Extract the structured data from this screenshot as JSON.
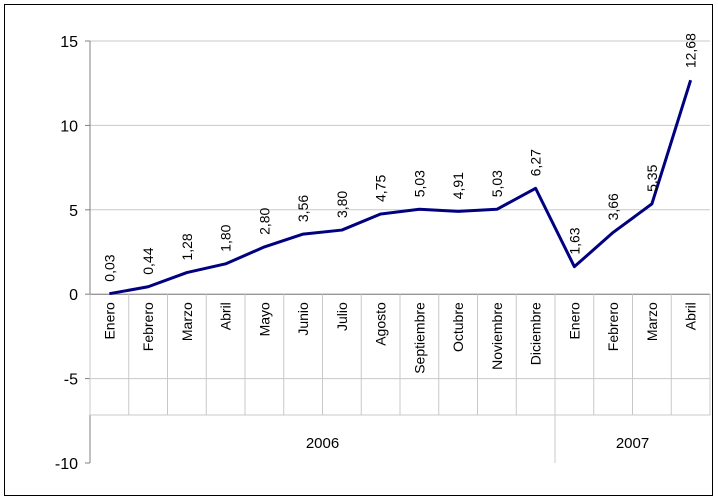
{
  "chart_data": {
    "type": "line",
    "title": "",
    "xlabel": "",
    "ylabel": "",
    "ylim": [
      -10,
      15
    ],
    "yticks": [
      -10,
      -5,
      0,
      5,
      10,
      15
    ],
    "grid": true,
    "legend": "none",
    "line_color": "#000080",
    "categories": [
      "Enero",
      "Febrero",
      "Marzo",
      "Abril",
      "Mayo",
      "Junio",
      "Julio",
      "Agosto",
      "Septiembre",
      "Octubre",
      "Noviembre",
      "Diciembre",
      "Enero",
      "Febrero",
      "Marzo",
      "Abril"
    ],
    "groups": [
      {
        "label": "2006",
        "count": 12
      },
      {
        "label": "2007",
        "count": 4
      }
    ],
    "series": [
      {
        "values": [
          0.03,
          0.44,
          1.28,
          1.8,
          2.8,
          3.56,
          3.8,
          4.75,
          5.03,
          4.91,
          5.03,
          6.27,
          1.63,
          3.66,
          5.35,
          12.68
        ],
        "labels": [
          "0,03",
          "0,44",
          "1,28",
          "1,80",
          "2,80",
          "3,56",
          "3,80",
          "4,75",
          "5,03",
          "4,91",
          "5,03",
          "6,27",
          "1,63",
          "3,66",
          "5,35",
          "12,68"
        ]
      }
    ]
  }
}
